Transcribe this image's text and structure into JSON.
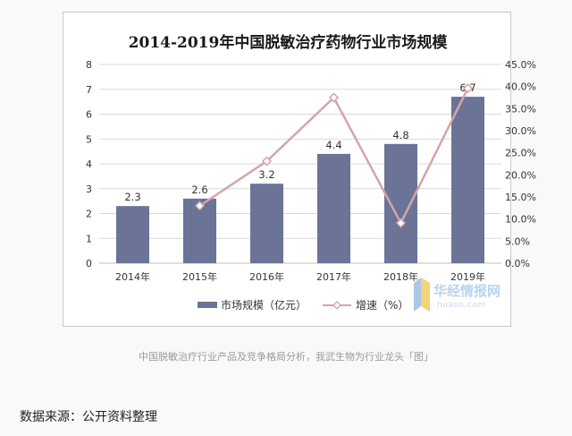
{
  "chart_data": {
    "type": "bar+line",
    "title": "2014-2019年中国脱敏治疗药物行业市场规模",
    "categories": [
      "2014年",
      "2015年",
      "2016年",
      "2017年",
      "2018年",
      "2019年"
    ],
    "series": [
      {
        "name": "市场规模（亿元）",
        "type": "bar",
        "axis": "left",
        "values": [
          2.3,
          2.6,
          3.2,
          4.4,
          4.8,
          6.7
        ],
        "color": "#6b7397"
      },
      {
        "name": "增速（%）",
        "type": "line",
        "axis": "right",
        "values": [
          null,
          13.0,
          23.1,
          37.5,
          9.1,
          39.6
        ],
        "color": "#d4a5a8"
      }
    ],
    "y_left": {
      "range": [
        0,
        8
      ],
      "ticks": [
        "0",
        "1",
        "2",
        "3",
        "4",
        "5",
        "6",
        "7",
        "8"
      ]
    },
    "y_right": {
      "range": [
        0,
        45
      ],
      "ticks": [
        "0.0%",
        "5.0%",
        "10.0%",
        "15.0%",
        "20.0%",
        "25.0%",
        "30.0%",
        "35.0%",
        "40.0%",
        "45.0%"
      ]
    },
    "data_labels": [
      "2.3",
      "2.6",
      "3.2",
      "4.4",
      "4.8",
      "6.7"
    ],
    "legend_position": "bottom",
    "grid": true
  },
  "watermark": {
    "brand": "华经情报网",
    "url": "huaon.com"
  },
  "caption": "中国脱敏治疗行业产品及竞争格局分析，我武生物为行业龙头「图」",
  "source": "数据来源：公开资料整理"
}
